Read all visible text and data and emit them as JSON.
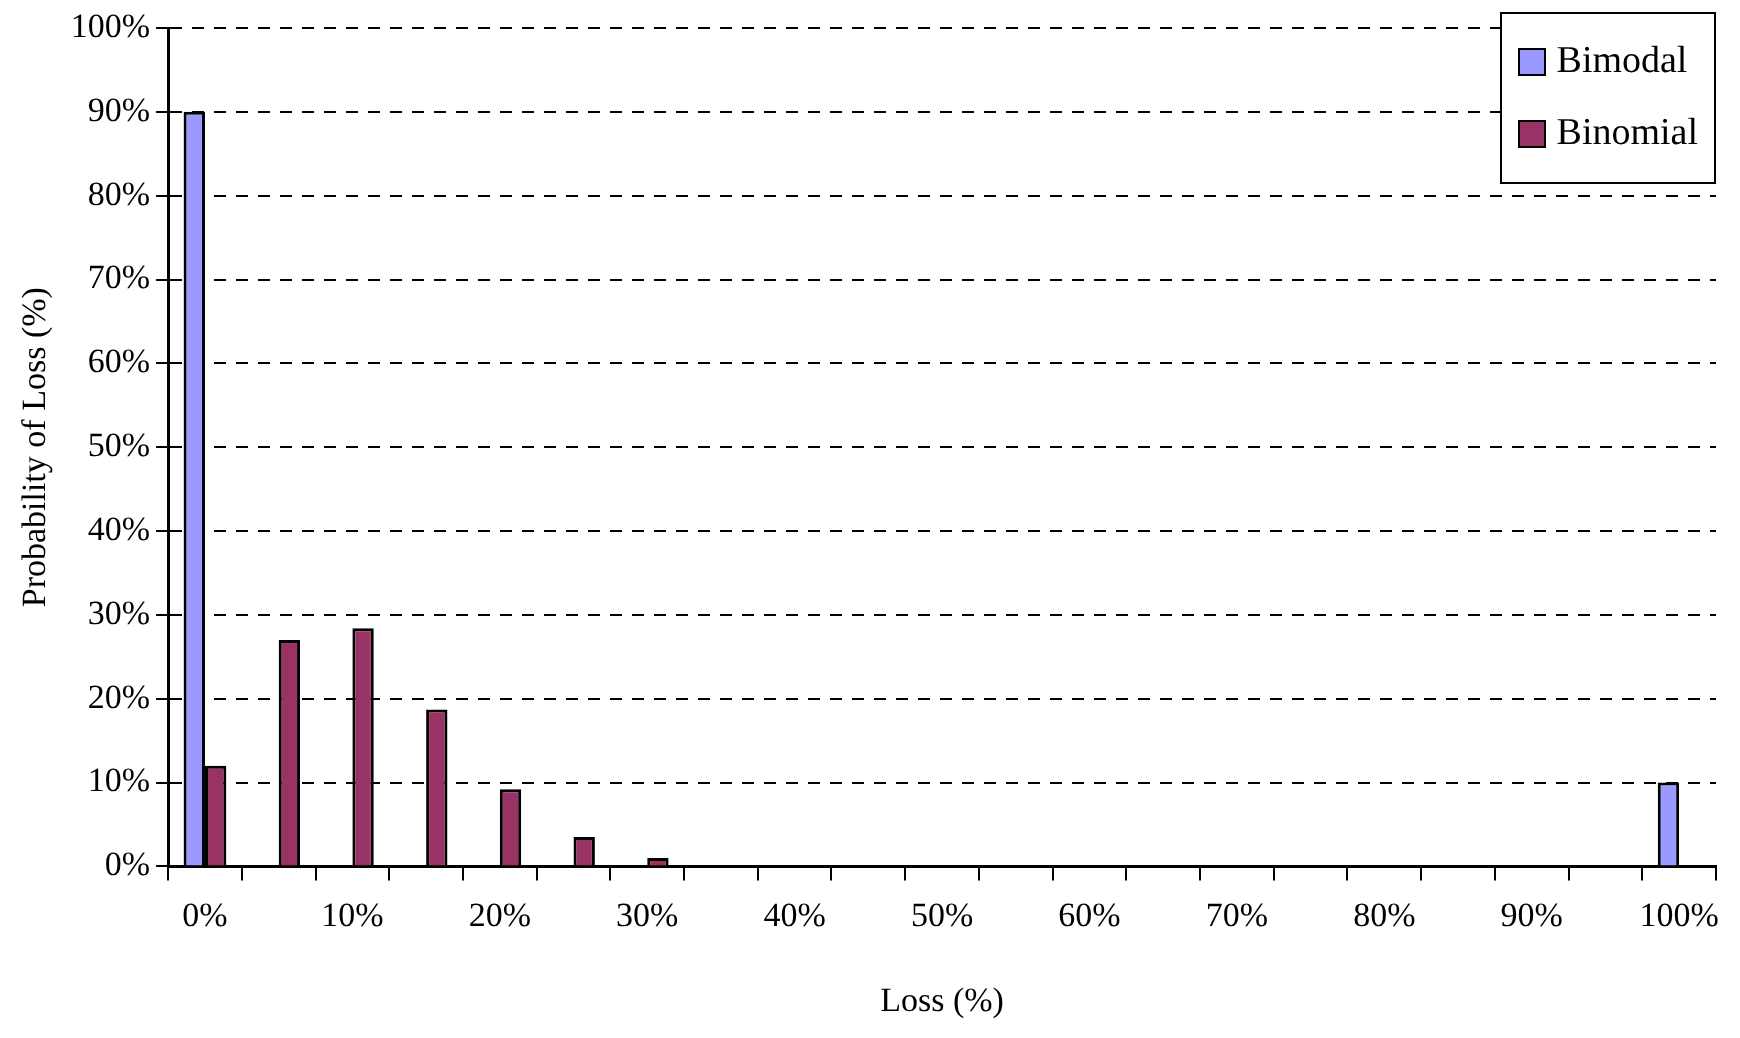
{
  "chart_data": {
    "type": "bar",
    "xlabel": "Loss (%)",
    "ylabel": "Probability of Loss (%)",
    "categories": [
      "0%",
      null,
      "10%",
      null,
      "20%",
      null,
      "30%",
      null,
      "40%",
      null,
      "50%",
      null,
      "60%",
      null,
      "70%",
      null,
      "80%",
      null,
      "90%",
      null,
      "100%"
    ],
    "series": [
      {
        "name": "Bimodal",
        "color": "#9999ff",
        "values": [
          90,
          0,
          0,
          0,
          0,
          0,
          0,
          0,
          0,
          0,
          0,
          0,
          0,
          0,
          0,
          0,
          0,
          0,
          0,
          0,
          10
        ]
      },
      {
        "name": "Binomial",
        "color": "#993366",
        "values": [
          12,
          27,
          28.4,
          18.7,
          9.2,
          3.5,
          1,
          0,
          0,
          0,
          0,
          0,
          0,
          0,
          0,
          0,
          0,
          0,
          0,
          0,
          0
        ]
      }
    ],
    "ylim": [
      0,
      100
    ],
    "yticks": [
      {
        "value": 0,
        "label": "0%"
      },
      {
        "value": 10,
        "label": "10%"
      },
      {
        "value": 20,
        "label": "20%"
      },
      {
        "value": 30,
        "label": "30%"
      },
      {
        "value": 40,
        "label": "40%"
      },
      {
        "value": 50,
        "label": "50%"
      },
      {
        "value": 60,
        "label": "60%"
      },
      {
        "value": 70,
        "label": "70%"
      },
      {
        "value": 80,
        "label": "80%"
      },
      {
        "value": 90,
        "label": "90%"
      },
      {
        "value": 100,
        "label": "100%"
      }
    ],
    "grid": "y",
    "legend": "top right"
  }
}
